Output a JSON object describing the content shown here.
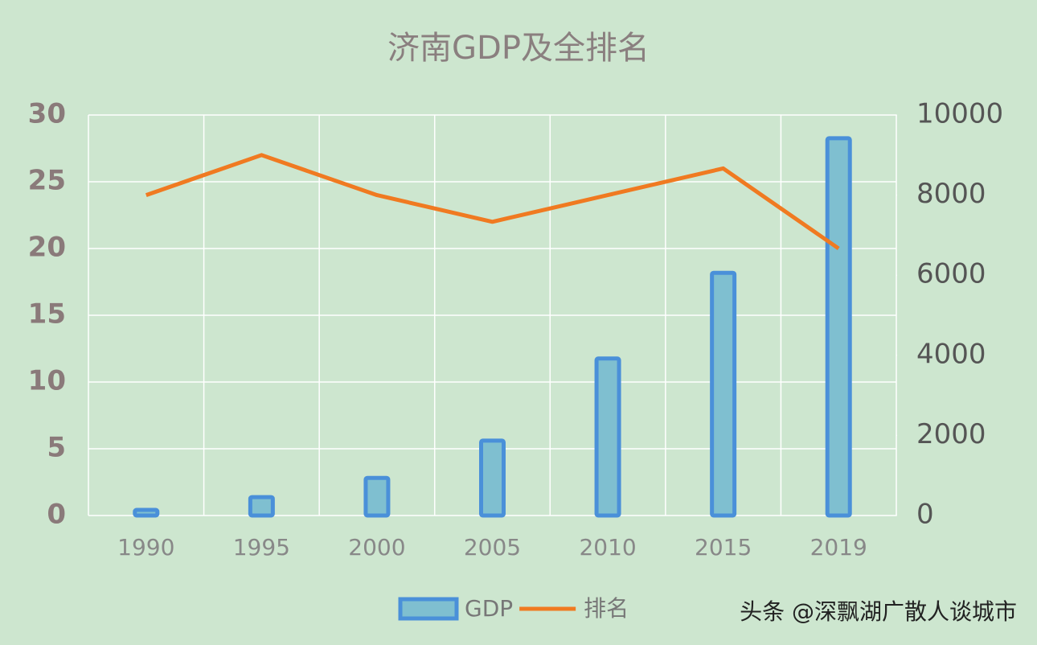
{
  "chart_data": {
    "type": "bar-line",
    "title": "济南GDP及全排名",
    "categories": [
      "1990",
      "1995",
      "2000",
      "2005",
      "2010",
      "2015",
      "2019"
    ],
    "series": [
      {
        "name": "GDP",
        "type": "bar",
        "axis": "y2",
        "color": "#7fbfd0",
        "values": [
          140,
          460,
          940,
          1870,
          3920,
          6060,
          9420
        ]
      },
      {
        "name": "排名",
        "type": "line",
        "axis": "y",
        "color": "#f07a21",
        "values": [
          24,
          27,
          24,
          22,
          24,
          26,
          20
        ]
      }
    ],
    "ylim": [
      0,
      30
    ],
    "yticks": [
      0,
      5,
      10,
      15,
      20,
      25,
      30
    ],
    "y2lim": [
      0,
      10000
    ],
    "y2ticks": [
      0,
      2000,
      4000,
      6000,
      8000,
      10000
    ],
    "grid": true,
    "legend": "bottom",
    "watermark": "头条 @深飘湖广散人谈城市"
  }
}
